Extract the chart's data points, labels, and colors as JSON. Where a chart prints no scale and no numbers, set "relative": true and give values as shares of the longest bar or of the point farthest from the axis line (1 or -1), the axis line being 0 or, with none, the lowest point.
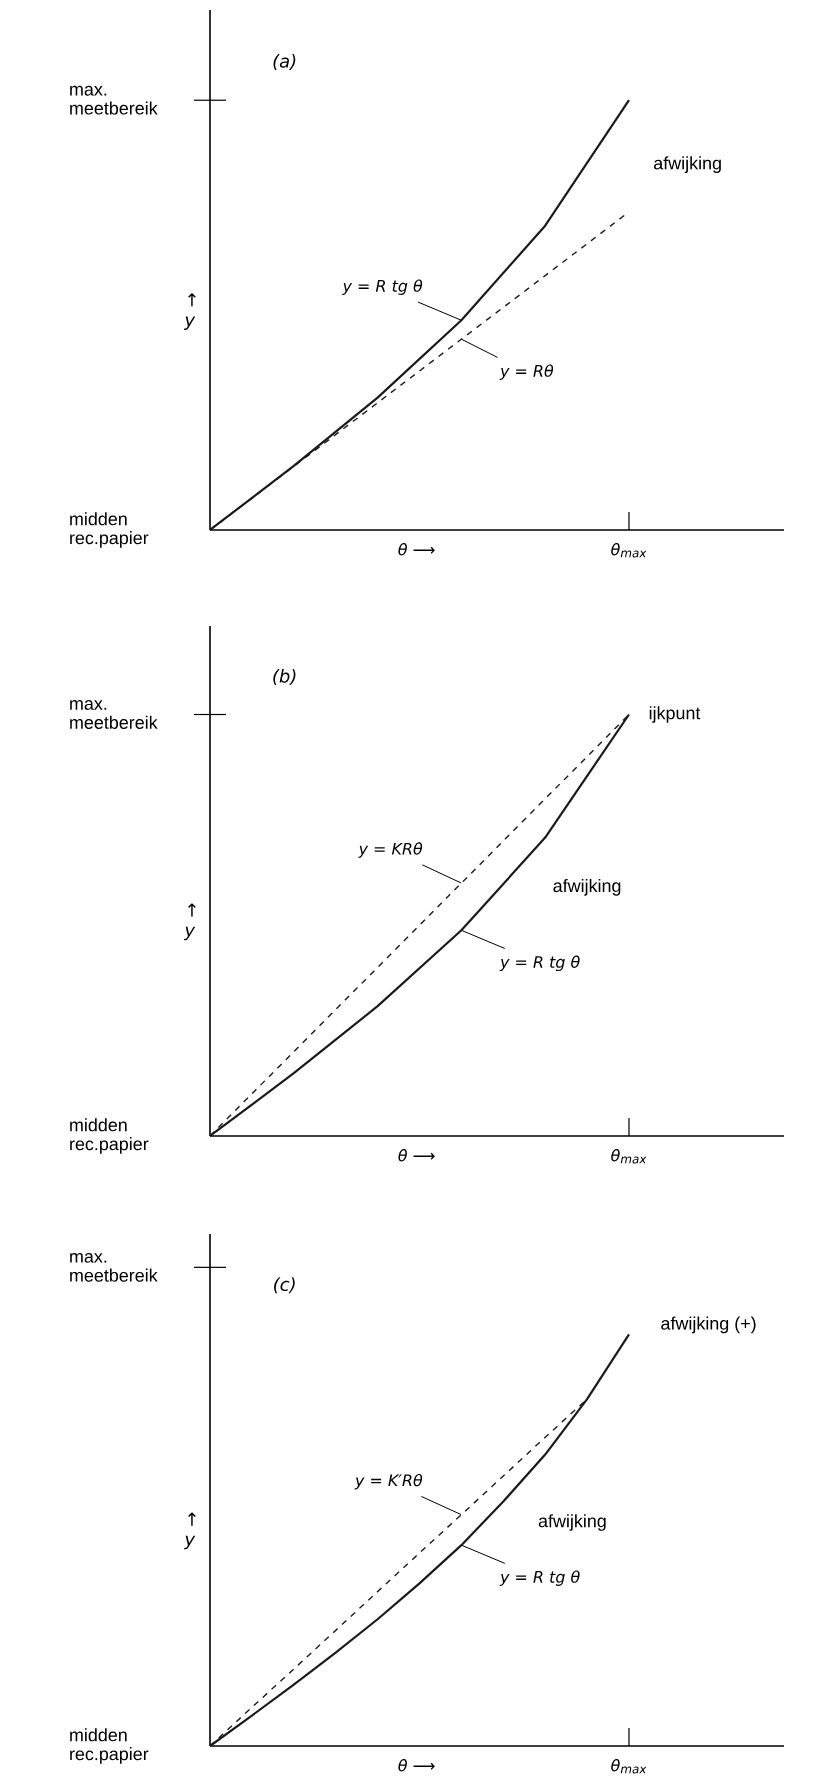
{
  "chart_data": [
    {
      "type": "line",
      "title": "(a)",
      "xlabel": "θ ⟶",
      "ylabel": "↑ y",
      "relative": true,
      "categories": [
        null,
        null,
        null,
        null,
        null,
        null
      ],
      "series": [
        {
          "name": "y = R tg θ",
          "color": "#1a1a1a",
          "line_style": "solid",
          "values": [
            0,
            0.149,
            0.308,
            0.488,
            0.708,
            1
          ]
        },
        {
          "name": "y = Rθ",
          "color": "#1a1a1a",
          "line_style": "dashed",
          "values": [
            0,
            0.148,
            0.296,
            0.444,
            0.592,
            0.74
          ]
        }
      ],
      "annotations": [
        "max. meetbereik",
        "midden rec.papier",
        "θ$_{max}$",
        "afwijking"
      ]
    },
    {
      "type": "line",
      "title": "(b)",
      "xlabel": "θ ⟶",
      "ylabel": "↑ y",
      "relative": true,
      "categories": [
        null,
        null,
        null,
        null,
        null,
        null
      ],
      "series": [
        {
          "name": "y = KRθ",
          "color": "#1a1a1a",
          "line_style": "dashed",
          "values": [
            0,
            0.2,
            0.4,
            0.6,
            0.8,
            1
          ]
        },
        {
          "name": "y = R tg θ",
          "color": "#1a1a1a",
          "line_style": "solid",
          "values": [
            0,
            0.149,
            0.308,
            0.488,
            0.708,
            1
          ]
        }
      ],
      "annotations": [
        "max. meetbereik",
        "midden rec.papier",
        "θ$_{max}$",
        "afwijking",
        "ijkpunt"
      ]
    },
    {
      "type": "line",
      "title": "(c)",
      "xlabel": "θ ⟶",
      "ylabel": "↑ y",
      "relative": true,
      "categories": [
        null,
        null,
        null,
        null,
        null,
        null,
        null,
        null,
        null,
        null,
        null
      ],
      "series": [
        {
          "name": "y = K′Rθ",
          "color": "#1a1a1a",
          "line_style": "dashed",
          "values": [
            0,
            0.094,
            0.187,
            0.281,
            0.375,
            0.469,
            0.562,
            0.656,
            0.75,
            0.843,
            null
          ]
        },
        {
          "name": "y = R tg θ",
          "color": "#1a1a1a",
          "line_style": "solid",
          "values": [
            0,
            0.074,
            0.149,
            0.227,
            0.308,
            0.395,
            0.488,
            0.594,
            0.708,
            0.843,
            1
          ]
        }
      ],
      "annotations": [
        "max. meetbereik",
        "midden rec.papier",
        "θ$_{max}$",
        "afwijking",
        "afwijking (+)"
      ]
    }
  ]
}
